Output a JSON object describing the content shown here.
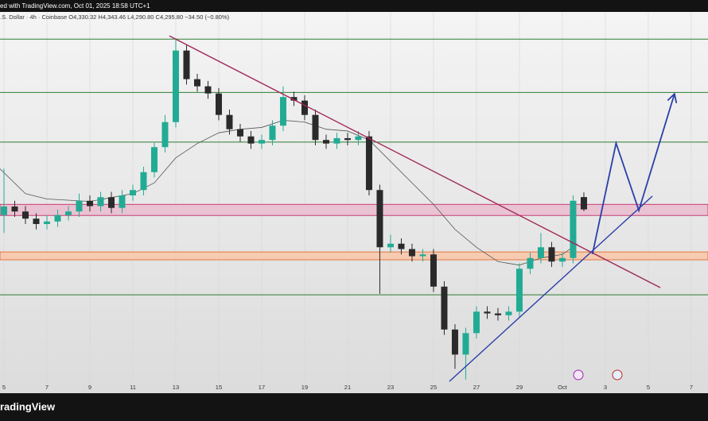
{
  "chart_data": {
    "type": "candlestick",
    "header": "ed with TradingView.com, Oct 01, 2025 18:58 UTC+1",
    "legend_text": ".S. Dollar · 4h · Coinbase   O4,330.32  H4,343.46  L4,290.80  C4,295.80  −34.50 (−0.80%)",
    "brand": "radingView",
    "x": [
      0,
      0.5,
      1,
      1.5,
      2,
      2.5,
      3,
      3.5,
      4,
      4.5,
      5,
      5.5,
      6,
      6.5,
      7,
      7.5,
      8,
      8.5,
      9,
      9.5,
      10,
      10.5,
      11,
      11.5,
      12,
      12.5,
      13,
      13.5,
      14,
      14.5,
      15,
      15.5,
      16,
      16.5,
      17,
      17.5,
      18,
      18.5,
      19,
      19.5,
      20,
      20.5,
      21,
      21.5,
      22,
      22.5,
      23,
      23.5,
      24,
      24.5,
      25,
      25.5,
      26,
      26.5,
      27
    ],
    "open": [
      4280,
      4304,
      4290,
      4270,
      4255,
      4262,
      4280,
      4290,
      4320,
      4305,
      4330,
      4300,
      4335,
      4350,
      4400,
      4470,
      4540,
      4740,
      4660,
      4640,
      4620,
      4560,
      4520,
      4500,
      4480,
      4490,
      4530,
      4610,
      4600,
      4560,
      4490,
      4480,
      4495,
      4490,
      4500,
      4350,
      4190,
      4200,
      4185,
      4165,
      4170,
      4080,
      3960,
      3890,
      3950,
      4010,
      4005,
      4000,
      4010,
      4130,
      4160,
      4190,
      4150,
      4160,
      4330.32
    ],
    "high": [
      4410,
      4320,
      4305,
      4285,
      4280,
      4295,
      4305,
      4340,
      4335,
      4345,
      4345,
      4350,
      4365,
      4415,
      4485,
      4560,
      4770,
      4755,
      4675,
      4655,
      4635,
      4575,
      4535,
      4515,
      4505,
      4545,
      4640,
      4625,
      4615,
      4575,
      4505,
      4510,
      4510,
      4515,
      4515,
      4365,
      4225,
      4215,
      4200,
      4185,
      4185,
      4095,
      3975,
      3965,
      4025,
      4025,
      4020,
      4025,
      4145,
      4175,
      4230,
      4205,
      4175,
      4335,
      4343.46
    ],
    "low": [
      4230,
      4275,
      4255,
      4240,
      4240,
      4247,
      4265,
      4275,
      4290,
      4290,
      4285,
      4285,
      4320,
      4335,
      4385,
      4455,
      4525,
      4645,
      4625,
      4605,
      4545,
      4505,
      4485,
      4465,
      4465,
      4475,
      4515,
      4585,
      4545,
      4475,
      4465,
      4465,
      4475,
      4475,
      4335,
      4060,
      4175,
      4170,
      4150,
      4150,
      4065,
      3945,
      3850,
      3820,
      3935,
      3990,
      3985,
      3985,
      3995,
      4115,
      4145,
      4135,
      4135,
      4145,
      4290.8
    ],
    "close": [
      4304,
      4290,
      4270,
      4255,
      4262,
      4280,
      4290,
      4320,
      4305,
      4330,
      4300,
      4335,
      4350,
      4400,
      4470,
      4540,
      4740,
      4660,
      4640,
      4620,
      4560,
      4520,
      4500,
      4480,
      4490,
      4530,
      4610,
      4600,
      4560,
      4490,
      4480,
      4495,
      4490,
      4500,
      4350,
      4190,
      4200,
      4185,
      4165,
      4170,
      4080,
      3960,
      3890,
      3950,
      4010,
      4005,
      4000,
      4010,
      4130,
      4160,
      4190,
      4150,
      4160,
      4320,
      4295.8
    ],
    "up_color": "#22ab94",
    "down_color": "#2a2a2a",
    "ma": {
      "color": "#555555",
      "x": [
        -0.2,
        1,
        2,
        4,
        6,
        7,
        8,
        9,
        10,
        11,
        12,
        13,
        14,
        15,
        16,
        17,
        18,
        19,
        20,
        21,
        22,
        23,
        24,
        25,
        26,
        26.7
      ],
      "values": [
        4410,
        4340,
        4325,
        4318,
        4340,
        4370,
        4440,
        4480,
        4510,
        4520,
        4525,
        4545,
        4540,
        4520,
        4515,
        4490,
        4430,
        4370,
        4310,
        4240,
        4190,
        4150,
        4140,
        4160,
        4170,
        4200
      ]
    },
    "levels": {
      "color": "#2e7d32",
      "values": [
        4772,
        4623,
        4484,
        4057
      ]
    },
    "zones": [
      {
        "color": "#c2185b",
        "fill": "#e9c3d2",
        "range": [
          4279,
          4310
        ]
      },
      {
        "color": "#e06020",
        "fill": "#f6cbb2",
        "range": [
          4155,
          4177
        ]
      }
    ],
    "trendlines": [
      {
        "color": "#a0285a",
        "x": [
          7.7,
          30.56
        ],
        "y": [
          4781,
          4077
        ]
      },
      {
        "color": "#2a3fa8",
        "x": [
          20.74,
          30.19
        ],
        "y": [
          3815,
          4333
        ]
      }
    ],
    "projection": {
      "color": "#2a3fa8",
      "x": [
        27.4,
        28.5,
        29.56,
        31.22
      ],
      "y": [
        4171,
        4481,
        4293,
        4619
      ]
    },
    "xlim": [
      -0.185,
      32.78
    ],
    "ylim": [
      3782,
      4848
    ],
    "xticks": [
      {
        "value": 0,
        "label": "5"
      },
      {
        "value": 2,
        "label": "7"
      },
      {
        "value": 4,
        "label": "9"
      },
      {
        "value": 6,
        "label": "11"
      },
      {
        "value": 8,
        "label": "13"
      },
      {
        "value": 10,
        "label": "15"
      },
      {
        "value": 12,
        "label": "17"
      },
      {
        "value": 14,
        "label": "19"
      },
      {
        "value": 16,
        "label": "21"
      },
      {
        "value": 18,
        "label": "23"
      },
      {
        "value": 20,
        "label": "25"
      },
      {
        "value": 22,
        "label": "27"
      },
      {
        "value": 24,
        "label": "29"
      },
      {
        "value": 26,
        "label": "Oct"
      },
      {
        "value": 28,
        "label": "3"
      },
      {
        "value": 30,
        "label": "5"
      },
      {
        "value": 32,
        "label": "7"
      }
    ],
    "grid": true
  }
}
